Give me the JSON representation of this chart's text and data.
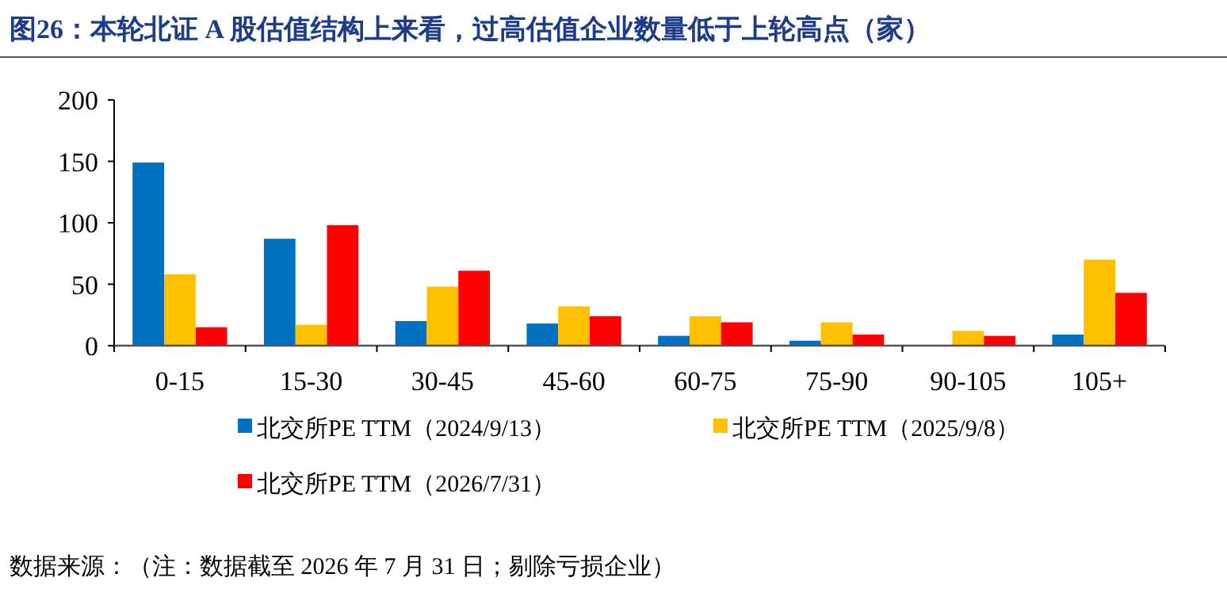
{
  "chart_data": {
    "type": "bar",
    "title": "图26：本轮北证 A 股估值结构上来看，过高估值企业数量低于上轮高点（家）",
    "categories": [
      "0-15",
      "15-30",
      "30-45",
      "45-60",
      "60-75",
      "75-90",
      "90-105",
      "105+"
    ],
    "series": [
      {
        "name": "北交所PE TTM（2024/9/13）",
        "color": "#0070c0",
        "values": [
          149,
          87,
          20,
          18,
          8,
          4,
          0,
          9
        ]
      },
      {
        "name": "北交所PE TTM（2025/9/8）",
        "color": "#ffc000",
        "values": [
          58,
          17,
          48,
          32,
          24,
          19,
          12,
          70
        ]
      },
      {
        "name": "北交所PE TTM（2026/7/31）",
        "color": "#ff0000",
        "values": [
          15,
          98,
          61,
          24,
          19,
          9,
          8,
          43
        ]
      }
    ],
    "ylim": [
      0,
      200
    ],
    "yticks": [
      0,
      50,
      100,
      150,
      200
    ],
    "legend": "bottom",
    "annotations": [
      "数据来源：（注：数据截至 2026 年 7 月 31 日；剔除亏损企业）"
    ]
  }
}
